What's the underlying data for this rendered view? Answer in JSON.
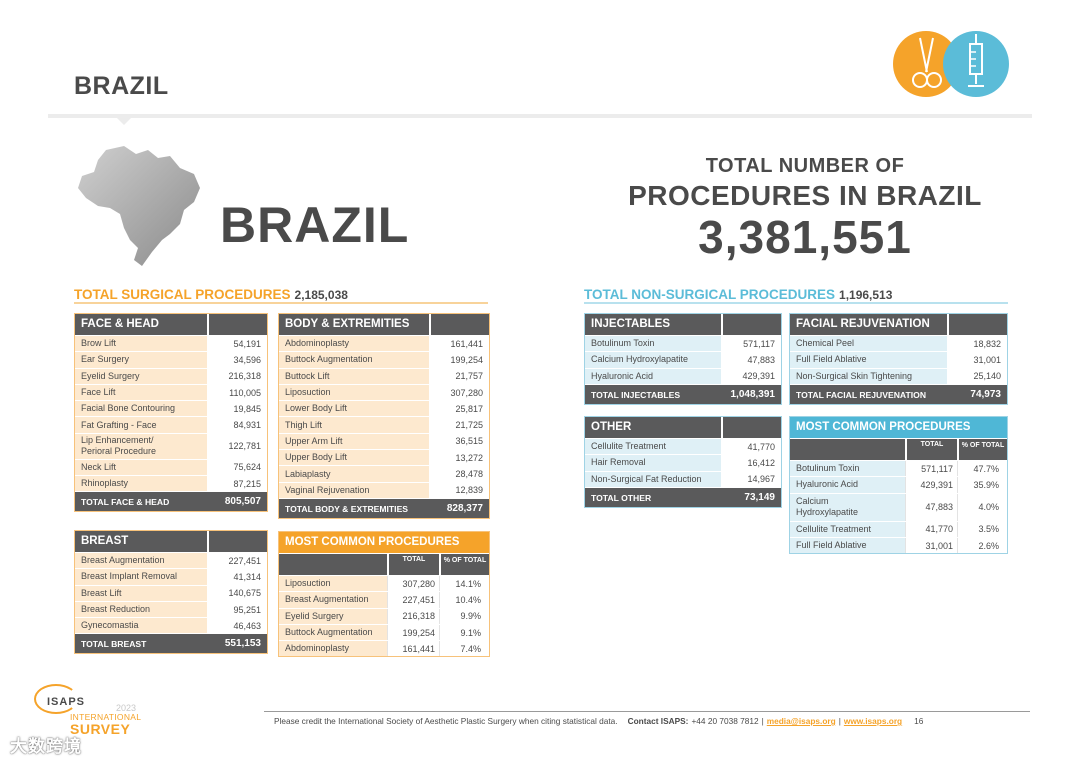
{
  "header": {
    "title": "BRAZIL"
  },
  "hero": {
    "country": "BRAZIL",
    "total_line1": "TOTAL NUMBER OF",
    "total_line2": "PROCEDURES IN BRAZIL",
    "total_number": "3,381,551"
  },
  "surgical": {
    "heading": "TOTAL SURGICAL PROCEDURES",
    "total": "2,185,038",
    "face_head": {
      "title": "FACE & HEAD",
      "rows": [
        {
          "label": "Brow Lift",
          "value": "54,191"
        },
        {
          "label": "Ear Surgery",
          "value": "34,596"
        },
        {
          "label": "Eyelid Surgery",
          "value": "216,318"
        },
        {
          "label": "Face Lift",
          "value": "110,005"
        },
        {
          "label": "Facial Bone Contouring",
          "value": "19,845"
        },
        {
          "label": "Fat Grafting - Face",
          "value": "84,931"
        },
        {
          "label": "Lip Enhancement/\nPerioral Procedure",
          "value": "122,781"
        },
        {
          "label": "Neck Lift",
          "value": "75,624"
        },
        {
          "label": "Rhinoplasty",
          "value": "87,215"
        }
      ],
      "total_label": "TOTAL FACE & HEAD",
      "total_value": "805,507"
    },
    "body": {
      "title": "BODY & EXTREMITIES",
      "rows": [
        {
          "label": "Abdominoplasty",
          "value": "161,441"
        },
        {
          "label": "Buttock Augmentation",
          "value": "199,254"
        },
        {
          "label": "Buttock Lift",
          "value": "21,757"
        },
        {
          "label": "Liposuction",
          "value": "307,280"
        },
        {
          "label": "Lower Body Lift",
          "value": "25,817"
        },
        {
          "label": "Thigh Lift",
          "value": "21,725"
        },
        {
          "label": "Upper Arm Lift",
          "value": "36,515"
        },
        {
          "label": "Upper Body Lift",
          "value": "13,272"
        },
        {
          "label": "Labiaplasty",
          "value": "28,478"
        },
        {
          "label": "Vaginal Rejuvenation",
          "value": "12,839"
        }
      ],
      "total_label": "TOTAL BODY & EXTREMITIES",
      "total_value": "828,377"
    },
    "breast": {
      "title": "BREAST",
      "rows": [
        {
          "label": "Breast Augmentation",
          "value": "227,451"
        },
        {
          "label": "Breast Implant Removal",
          "value": "41,314"
        },
        {
          "label": "Breast Lift",
          "value": "140,675"
        },
        {
          "label": "Breast Reduction",
          "value": "95,251"
        },
        {
          "label": "Gynecomastia",
          "value": "46,463"
        }
      ],
      "total_label": "TOTAL BREAST",
      "total_value": "551,153"
    },
    "most_common": {
      "title": "MOST COMMON PROCEDURES",
      "col_total": "TOTAL",
      "col_pct": "% OF TOTAL",
      "rows": [
        {
          "label": "Liposuction",
          "total": "307,280",
          "pct": "14.1%"
        },
        {
          "label": "Breast Augmentation",
          "total": "227,451",
          "pct": "10.4%"
        },
        {
          "label": "Eyelid Surgery",
          "total": "216,318",
          "pct": "9.9%"
        },
        {
          "label": "Buttock Augmentation",
          "total": "199,254",
          "pct": "9.1%"
        },
        {
          "label": "Abdominoplasty",
          "total": "161,441",
          "pct": "7.4%"
        }
      ]
    }
  },
  "nonsurgical": {
    "heading": "TOTAL NON-SURGICAL PROCEDURES",
    "total": "1,196,513",
    "injectables": {
      "title": "INJECTABLES",
      "rows": [
        {
          "label": "Botulinum Toxin",
          "value": "571,117"
        },
        {
          "label": "Calcium Hydroxylapatite",
          "value": "47,883"
        },
        {
          "label": "Hyaluronic Acid",
          "value": "429,391"
        }
      ],
      "total_label": "TOTAL INJECTABLES",
      "total_value": "1,048,391"
    },
    "facial": {
      "title": "FACIAL REJUVENATION",
      "rows": [
        {
          "label": "Chemical Peel",
          "value": "18,832"
        },
        {
          "label": "Full Field Ablative",
          "value": "31,001"
        },
        {
          "label": "Non-Surgical Skin Tightening",
          "value": "25,140"
        }
      ],
      "total_label": "TOTAL FACIAL REJUVENATION",
      "total_value": "74,973"
    },
    "other": {
      "title": "OTHER",
      "rows": [
        {
          "label": "Cellulite Treatment",
          "value": "41,770"
        },
        {
          "label": "Hair Removal",
          "value": "16,412"
        },
        {
          "label": "Non-Surgical Fat Reduction",
          "value": "14,967"
        }
      ],
      "total_label": "TOTAL OTHER",
      "total_value": "73,149"
    },
    "most_common": {
      "title": "MOST COMMON PROCEDURES",
      "col_total": "TOTAL",
      "col_pct": "% OF TOTAL",
      "rows": [
        {
          "label": "Botulinum Toxin",
          "total": "571,117",
          "pct": "47.7%"
        },
        {
          "label": "Hyaluronic Acid",
          "total": "429,391",
          "pct": "35.9%"
        },
        {
          "label": "Calcium\nHydroxylapatite",
          "total": "47,883",
          "pct": "4.0%"
        },
        {
          "label": "Cellulite Treatment",
          "total": "41,770",
          "pct": "3.5%"
        },
        {
          "label": "Full Field Ablative",
          "total": "31,001",
          "pct": "2.6%"
        }
      ]
    }
  },
  "branding": {
    "org": "ISAPS",
    "year": "2023",
    "survey_line1": "INTERNATIONAL",
    "survey_line2": "SURVEY",
    "watermark": "大数跨境",
    "icons": [
      "scissors-icon",
      "syringe-icon"
    ],
    "colors": {
      "orange": "#f5a32a",
      "blue": "#5bbcd8",
      "dark": "#5a5a5b"
    }
  },
  "footer": {
    "credit": "Please credit the International Society of Aesthetic Plastic Surgery when citing statistical data.",
    "contact_label": "Contact ISAPS:",
    "phone": "+44 20 7038 7812",
    "email": "media@isaps.org",
    "website": "www.isaps.org",
    "page": "16"
  }
}
